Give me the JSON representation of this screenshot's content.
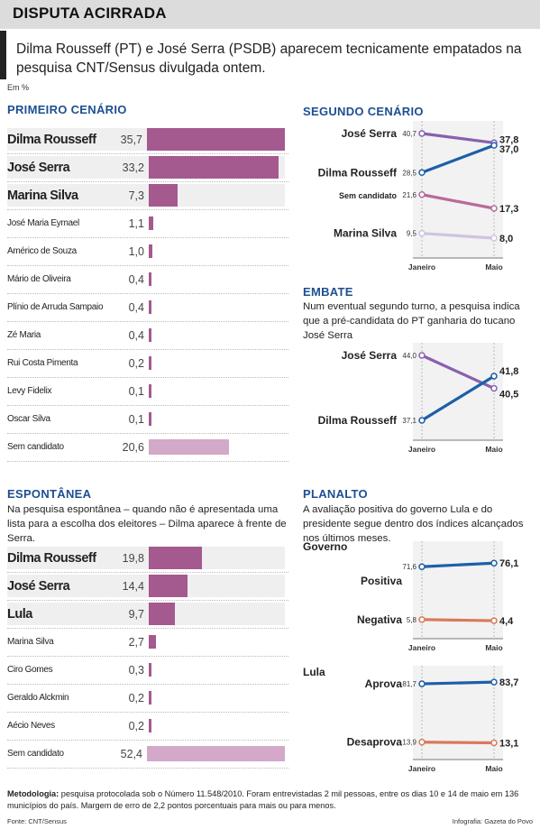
{
  "header": {
    "title": "DISPUTA ACIRRADA"
  },
  "subtitle": "Dilma Rousseff (PT) e José Serra (PSDB) aparecem tecnicamente empatados na pesquisa CNT/Sensus divulgada ontem.",
  "unit": "Em %",
  "colors": {
    "bar": "#a4598f",
    "bar_light": "#d3a8c8",
    "section": "#1d4f91",
    "blue_line": "#1d5fa8",
    "purple_line": "#8a5fae",
    "pink_line": "#b86a9a",
    "light_line": "#cfc3e3",
    "orange_line": "#d97a5a"
  },
  "primeiro": {
    "title": "PRIMEIRO CENÁRIO",
    "rows": [
      {
        "name": "Dilma Rousseff",
        "value": 35.7,
        "label": "35,7"
      },
      {
        "name": "José Serra",
        "value": 33.2,
        "label": "33,2"
      },
      {
        "name": "Marina Silva",
        "value": 7.3,
        "label": "7,3"
      },
      {
        "name": "José Maria Eymael",
        "value": 1.1,
        "label": "1,1"
      },
      {
        "name": "Américo de Souza",
        "value": 1.0,
        "label": "1,0"
      },
      {
        "name": "Mário de Oliveira",
        "value": 0.4,
        "label": "0,4"
      },
      {
        "name": "Plínio de Arruda Sampaio",
        "value": 0.4,
        "label": "0,4"
      },
      {
        "name": "Zé Maria",
        "value": 0.4,
        "label": "0,4"
      },
      {
        "name": "Rui Costa Pimenta",
        "value": 0.2,
        "label": "0,2"
      },
      {
        "name": "Levy Fidelix",
        "value": 0.1,
        "label": "0,1"
      },
      {
        "name": "Oscar Silva",
        "value": 0.1,
        "label": "0,1"
      },
      {
        "name": "Sem candidato",
        "value": 20.6,
        "label": "20,6"
      }
    ]
  },
  "espontanea": {
    "title": "ESPONTÂNEA",
    "desc": "Na pesquisa espontânea – quando não é apresentada uma lista para a escolha dos eleitores – Dilma aparece à frente de Serra.",
    "rows": [
      {
        "name": "Dilma Rousseff",
        "value": 19.8,
        "label": "19,8"
      },
      {
        "name": "José Serra",
        "value": 14.4,
        "label": "14,4"
      },
      {
        "name": "Lula",
        "value": 9.7,
        "label": "9,7"
      },
      {
        "name": "Marina Silva",
        "value": 2.7,
        "label": "2,7"
      },
      {
        "name": "Ciro Gomes",
        "value": 0.3,
        "label": "0,3"
      },
      {
        "name": "Geraldo Alckmin",
        "value": 0.2,
        "label": "0,2"
      },
      {
        "name": "Aécio Neves",
        "value": 0.2,
        "label": "0,2"
      },
      {
        "name": "Sem candidato",
        "value": 52.4,
        "label": "52,4"
      }
    ]
  },
  "segundo": {
    "title": "SEGUNDO CENÁRIO",
    "x": [
      "Janeiro",
      "Maio"
    ],
    "series": [
      {
        "name": "José Serra",
        "values": [
          40.7,
          37.8
        ],
        "labels": [
          "40,7",
          "37,8"
        ]
      },
      {
        "name": "Dilma Rousseff",
        "values": [
          28.5,
          37.0
        ],
        "labels": [
          "28,5",
          "37,0"
        ]
      },
      {
        "name": "Sem candidato",
        "values": [
          21.6,
          17.3
        ],
        "labels": [
          "21,6",
          "17,3"
        ]
      },
      {
        "name": "Marina Silva",
        "values": [
          9.5,
          8.0
        ],
        "labels": [
          "9,5",
          "8,0"
        ]
      }
    ]
  },
  "embate": {
    "title": "EMBATE",
    "desc": "Num eventual segundo turno, a pesquisa indica que a pré-candidata do PT ganharia do tucano José Serra",
    "x": [
      "Janeiro",
      "Maio"
    ],
    "series": [
      {
        "name": "José Serra",
        "values": [
          44.0,
          40.5
        ],
        "labels": [
          "44,0",
          "40,5"
        ]
      },
      {
        "name": "Dilma Rousseff",
        "values": [
          37.1,
          41.8
        ],
        "labels": [
          "37,1",
          "41,8"
        ]
      }
    ]
  },
  "planalto": {
    "title": "PLANALTO",
    "desc": "A avaliação positiva do governo Lula e do presidente segue dentro dos índices alcançados nos últimos meses.",
    "x": [
      "Janeiro",
      "Maio"
    ],
    "governo": {
      "label": "Governo",
      "series": [
        {
          "name": "Positiva",
          "values": [
            71.6,
            76.1
          ],
          "labels": [
            "71,6",
            "76,1"
          ]
        },
        {
          "name": "Negativa",
          "values": [
            5.8,
            4.4
          ],
          "labels": [
            "5,8",
            "4,4"
          ]
        }
      ]
    },
    "lula": {
      "label": "Lula",
      "series": [
        {
          "name": "Aprova",
          "values": [
            81.7,
            83.7
          ],
          "labels": [
            "81,7",
            "83,7"
          ]
        },
        {
          "name": "Desaprova",
          "values": [
            13.9,
            13.1
          ],
          "labels": [
            "13,9",
            "13,1"
          ]
        }
      ]
    }
  },
  "chart_data": [
    {
      "type": "bar",
      "title": "PRIMEIRO CENÁRIO",
      "categories": [
        "Dilma Rousseff",
        "José Serra",
        "Marina Silva",
        "José Maria Eymael",
        "Américo de Souza",
        "Mário de Oliveira",
        "Plínio de Arruda Sampaio",
        "Zé Maria",
        "Rui Costa Pimenta",
        "Levy Fidelix",
        "Oscar Silva",
        "Sem candidato"
      ],
      "values": [
        35.7,
        33.2,
        7.3,
        1.1,
        1.0,
        0.4,
        0.4,
        0.4,
        0.2,
        0.1,
        0.1,
        20.6
      ]
    },
    {
      "type": "bar",
      "title": "ESPONTÂNEA",
      "categories": [
        "Dilma Rousseff",
        "José Serra",
        "Lula",
        "Marina Silva",
        "Ciro Gomes",
        "Geraldo Alckmin",
        "Aécio Neves",
        "Sem candidato"
      ],
      "values": [
        19.8,
        14.4,
        9.7,
        2.7,
        0.3,
        0.2,
        0.2,
        52.4
      ]
    },
    {
      "type": "line",
      "title": "SEGUNDO CENÁRIO",
      "x": [
        "Janeiro",
        "Maio"
      ],
      "series": [
        {
          "name": "José Serra",
          "values": [
            40.7,
            37.8
          ]
        },
        {
          "name": "Dilma Rousseff",
          "values": [
            28.5,
            37.0
          ]
        },
        {
          "name": "Sem candidato",
          "values": [
            21.6,
            17.3
          ]
        },
        {
          "name": "Marina Silva",
          "values": [
            9.5,
            8.0
          ]
        }
      ]
    },
    {
      "type": "line",
      "title": "EMBATE",
      "x": [
        "Janeiro",
        "Maio"
      ],
      "series": [
        {
          "name": "José Serra",
          "values": [
            44.0,
            40.5
          ]
        },
        {
          "name": "Dilma Rousseff",
          "values": [
            37.1,
            41.8
          ]
        }
      ]
    },
    {
      "type": "line",
      "title": "PLANALTO",
      "x": [
        "Janeiro",
        "Maio"
      ],
      "series": [
        {
          "name": "Positiva",
          "values": [
            71.6,
            76.1
          ]
        },
        {
          "name": "Negativa",
          "values": [
            5.8,
            4.4
          ]
        },
        {
          "name": "Aprova",
          "values": [
            81.7,
            83.7
          ]
        },
        {
          "name": "Desaprova",
          "values": [
            13.9,
            13.1
          ]
        }
      ]
    }
  ],
  "footer": {
    "method_label": "Metodologia:",
    "method": "pesquisa protocolada sob o Número 11.548/2010. Foram entrevistadas 2 mil pessoas, entre os dias 10 e 14 de maio em 136 municípios do país. Margem de erro de 2,2 pontos porcentuais para mais ou para menos.",
    "source": "Fonte: CNT/Sensus",
    "credit": "Infografia: Gazeta do Povo"
  }
}
